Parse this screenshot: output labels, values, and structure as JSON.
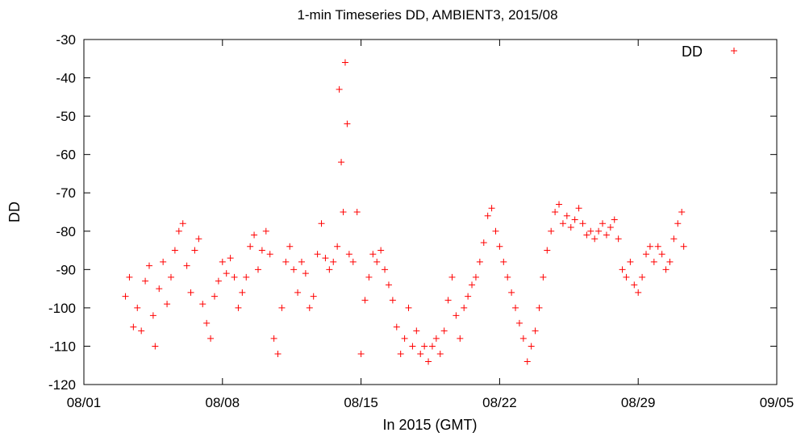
{
  "chart_data": {
    "type": "scatter",
    "title": "1-min Timeseries DD, AMBIENT3, 2015/08",
    "xlabel": "In 2015 (GMT)",
    "ylabel": "DD",
    "x_unit": "day of August 2015",
    "xlim": [
      1,
      36
    ],
    "ylim": [
      -120,
      -30
    ],
    "x_ticks": [
      1,
      8,
      15,
      22,
      29,
      36
    ],
    "x_tick_labels": [
      "08/01",
      "08/08",
      "08/15",
      "08/22",
      "08/29",
      "09/05"
    ],
    "y_ticks": [
      -120,
      -110,
      -100,
      -90,
      -80,
      -70,
      -60,
      -50,
      -40,
      -30
    ],
    "y_tick_labels": [
      "-120",
      "-110",
      "-100",
      "-90",
      "-80",
      "-70",
      "-60",
      "-50",
      "-40",
      "-30"
    ],
    "legend": {
      "position": "top-right"
    },
    "grid": false,
    "series": [
      {
        "name": "DD",
        "color": "#ff0000",
        "marker": "plus",
        "points": [
          [
            3.1,
            -97
          ],
          [
            3.3,
            -92
          ],
          [
            3.5,
            -105
          ],
          [
            3.7,
            -100
          ],
          [
            3.9,
            -106
          ],
          [
            4.1,
            -93
          ],
          [
            4.3,
            -89
          ],
          [
            4.5,
            -102
          ],
          [
            4.6,
            -110
          ],
          [
            4.8,
            -95
          ],
          [
            5.0,
            -88
          ],
          [
            5.2,
            -99
          ],
          [
            5.4,
            -92
          ],
          [
            5.6,
            -85
          ],
          [
            5.8,
            -80
          ],
          [
            6.0,
            -78
          ],
          [
            6.2,
            -89
          ],
          [
            6.4,
            -96
          ],
          [
            6.6,
            -85
          ],
          [
            6.8,
            -82
          ],
          [
            7.0,
            -99
          ],
          [
            7.2,
            -104
          ],
          [
            7.4,
            -108
          ],
          [
            7.6,
            -97
          ],
          [
            7.8,
            -93
          ],
          [
            8.0,
            -88
          ],
          [
            8.2,
            -91
          ],
          [
            8.4,
            -87
          ],
          [
            8.6,
            -92
          ],
          [
            8.8,
            -100
          ],
          [
            9.0,
            -96
          ],
          [
            9.2,
            -92
          ],
          [
            9.4,
            -84
          ],
          [
            9.6,
            -81
          ],
          [
            9.8,
            -90
          ],
          [
            10.0,
            -85
          ],
          [
            10.2,
            -80
          ],
          [
            10.4,
            -86
          ],
          [
            10.6,
            -108
          ],
          [
            10.8,
            -112
          ],
          [
            11.0,
            -100
          ],
          [
            11.2,
            -88
          ],
          [
            11.4,
            -84
          ],
          [
            11.6,
            -90
          ],
          [
            11.8,
            -96
          ],
          [
            12.0,
            -88
          ],
          [
            12.2,
            -91
          ],
          [
            12.4,
            -100
          ],
          [
            12.6,
            -97
          ],
          [
            12.8,
            -86
          ],
          [
            13.0,
            -78
          ],
          [
            13.2,
            -87
          ],
          [
            13.4,
            -90
          ],
          [
            13.6,
            -88
          ],
          [
            13.8,
            -84
          ],
          [
            13.9,
            -43
          ],
          [
            14.0,
            -62
          ],
          [
            14.1,
            -75
          ],
          [
            14.2,
            -36
          ],
          [
            14.3,
            -52
          ],
          [
            14.4,
            -86
          ],
          [
            14.6,
            -88
          ],
          [
            14.8,
            -75
          ],
          [
            15.0,
            -112
          ],
          [
            15.2,
            -98
          ],
          [
            15.4,
            -92
          ],
          [
            15.6,
            -86
          ],
          [
            15.8,
            -88
          ],
          [
            16.0,
            -85
          ],
          [
            16.2,
            -90
          ],
          [
            16.4,
            -94
          ],
          [
            16.6,
            -98
          ],
          [
            16.8,
            -105
          ],
          [
            17.0,
            -112
          ],
          [
            17.2,
            -108
          ],
          [
            17.4,
            -100
          ],
          [
            17.6,
            -110
          ],
          [
            17.8,
            -106
          ],
          [
            18.0,
            -112
          ],
          [
            18.2,
            -110
          ],
          [
            18.4,
            -114
          ],
          [
            18.6,
            -110
          ],
          [
            18.8,
            -108
          ],
          [
            19.0,
            -112
          ],
          [
            19.2,
            -106
          ],
          [
            19.4,
            -98
          ],
          [
            19.6,
            -92
          ],
          [
            19.8,
            -102
          ],
          [
            20.0,
            -108
          ],
          [
            20.2,
            -100
          ],
          [
            20.4,
            -97
          ],
          [
            20.6,
            -94
          ],
          [
            20.8,
            -92
          ],
          [
            21.0,
            -88
          ],
          [
            21.2,
            -83
          ],
          [
            21.4,
            -76
          ],
          [
            21.6,
            -74
          ],
          [
            21.8,
            -80
          ],
          [
            22.0,
            -84
          ],
          [
            22.2,
            -88
          ],
          [
            22.4,
            -92
          ],
          [
            22.6,
            -96
          ],
          [
            22.8,
            -100
          ],
          [
            23.0,
            -104
          ],
          [
            23.2,
            -108
          ],
          [
            23.4,
            -114
          ],
          [
            23.6,
            -110
          ],
          [
            23.8,
            -106
          ],
          [
            24.0,
            -100
          ],
          [
            24.2,
            -92
          ],
          [
            24.4,
            -85
          ],
          [
            24.6,
            -80
          ],
          [
            24.8,
            -75
          ],
          [
            25.0,
            -73
          ],
          [
            25.2,
            -78
          ],
          [
            25.4,
            -76
          ],
          [
            25.6,
            -79
          ],
          [
            25.8,
            -77
          ],
          [
            26.0,
            -74
          ],
          [
            26.2,
            -78
          ],
          [
            26.4,
            -81
          ],
          [
            26.6,
            -80
          ],
          [
            26.8,
            -82
          ],
          [
            27.0,
            -80
          ],
          [
            27.2,
            -78
          ],
          [
            27.4,
            -81
          ],
          [
            27.6,
            -79
          ],
          [
            27.8,
            -77
          ],
          [
            28.0,
            -82
          ],
          [
            28.2,
            -90
          ],
          [
            28.4,
            -92
          ],
          [
            28.6,
            -88
          ],
          [
            28.8,
            -94
          ],
          [
            29.0,
            -96
          ],
          [
            29.2,
            -92
          ],
          [
            29.4,
            -86
          ],
          [
            29.6,
            -84
          ],
          [
            29.8,
            -88
          ],
          [
            30.0,
            -84
          ],
          [
            30.2,
            -86
          ],
          [
            30.4,
            -90
          ],
          [
            30.6,
            -88
          ],
          [
            30.8,
            -82
          ],
          [
            31.0,
            -78
          ],
          [
            31.2,
            -75
          ],
          [
            31.3,
            -84
          ]
        ]
      }
    ]
  }
}
